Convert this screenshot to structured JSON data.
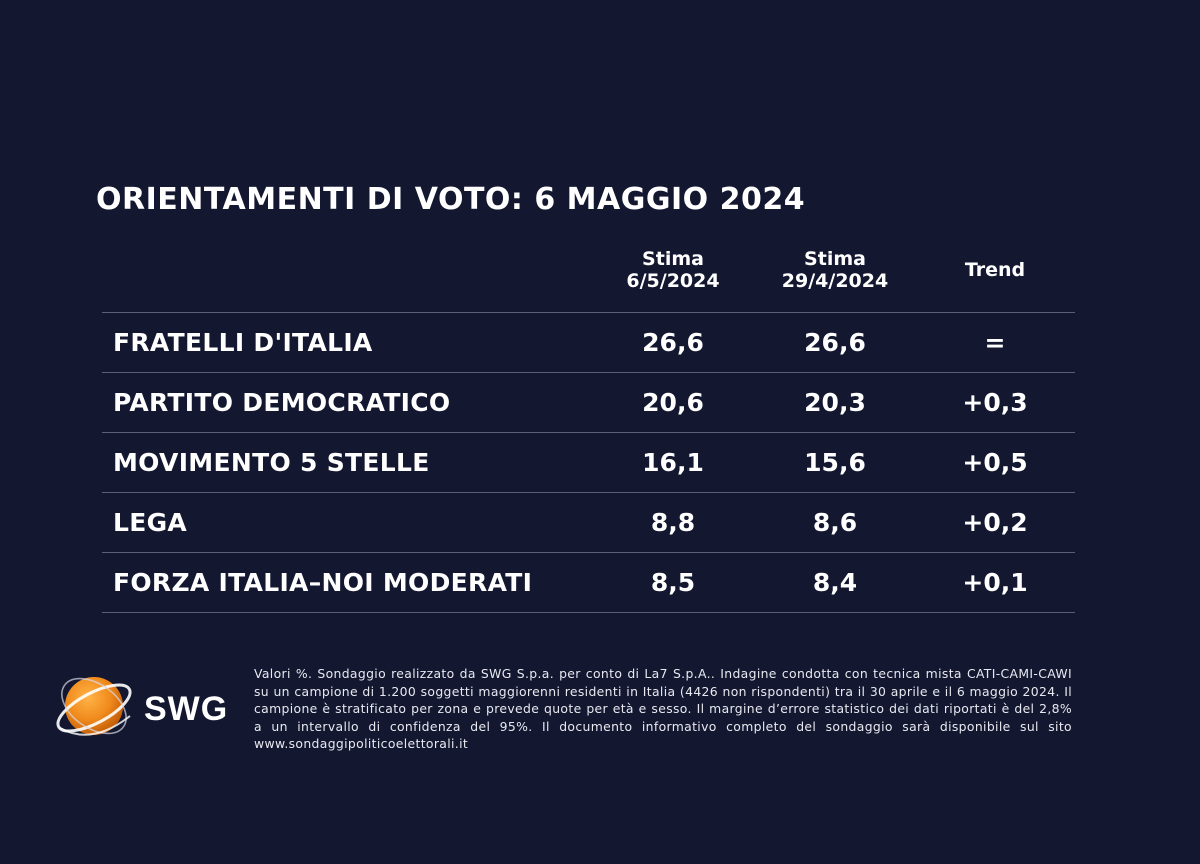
{
  "title": "ORIENTAMENTI DI VOTO: 6 MAGGIO 2024",
  "colors": {
    "background": "#131730",
    "text": "#ffffff",
    "rule": "#5a5f78",
    "logo_orange": "#f08a1c"
  },
  "chart_data": {
    "type": "table",
    "title": "ORIENTAMENTI DI VOTO: 6 MAGGIO 2024",
    "columns": [
      {
        "line1": "Stima",
        "line2": "6/5/2024"
      },
      {
        "line1": "Stima",
        "line2": "29/4/2024"
      },
      {
        "line1": "Trend",
        "line2": ""
      }
    ],
    "rows": [
      {
        "party": "FRATELLI D'ITALIA",
        "stima_6_5": "26,6",
        "stima_29_4": "26,6",
        "trend": "="
      },
      {
        "party": "PARTITO DEMOCRATICO",
        "stima_6_5": "20,6",
        "stima_29_4": "20,3",
        "trend": "+0,3"
      },
      {
        "party": "MOVIMENTO 5 STELLE",
        "stima_6_5": "16,1",
        "stima_29_4": "15,6",
        "trend": "+0,5"
      },
      {
        "party": "LEGA",
        "stima_6_5": "8,8",
        "stima_29_4": "8,6",
        "trend": "+0,2"
      },
      {
        "party": "FORZA ITALIA–NOI MODERATI",
        "stima_6_5": "8,5",
        "stima_29_4": "8,4",
        "trend": "+0,1"
      }
    ]
  },
  "logo": {
    "text": "SWG",
    "icon": "swg-globe-icon"
  },
  "footnote": "Valori %. Sondaggio realizzato da SWG S.p.a. per conto di La7 S.p.A.. Indagine condotta con tecnica mista CATI-CAMI-CAWI su un campione di 1.200 soggetti maggiorenni residenti in Italia (4426 non rispondenti) tra il 30 aprile e il 6 maggio 2024. Il campione è stratificato per zona e prevede quote per età e sesso. Il margine d’errore statistico dei dati riportati è del 2,8% a un intervallo di confidenza del 95%. Il documento informativo completo del sondaggio sarà disponibile sul sito www.sondaggipoliticoelettorali.it"
}
